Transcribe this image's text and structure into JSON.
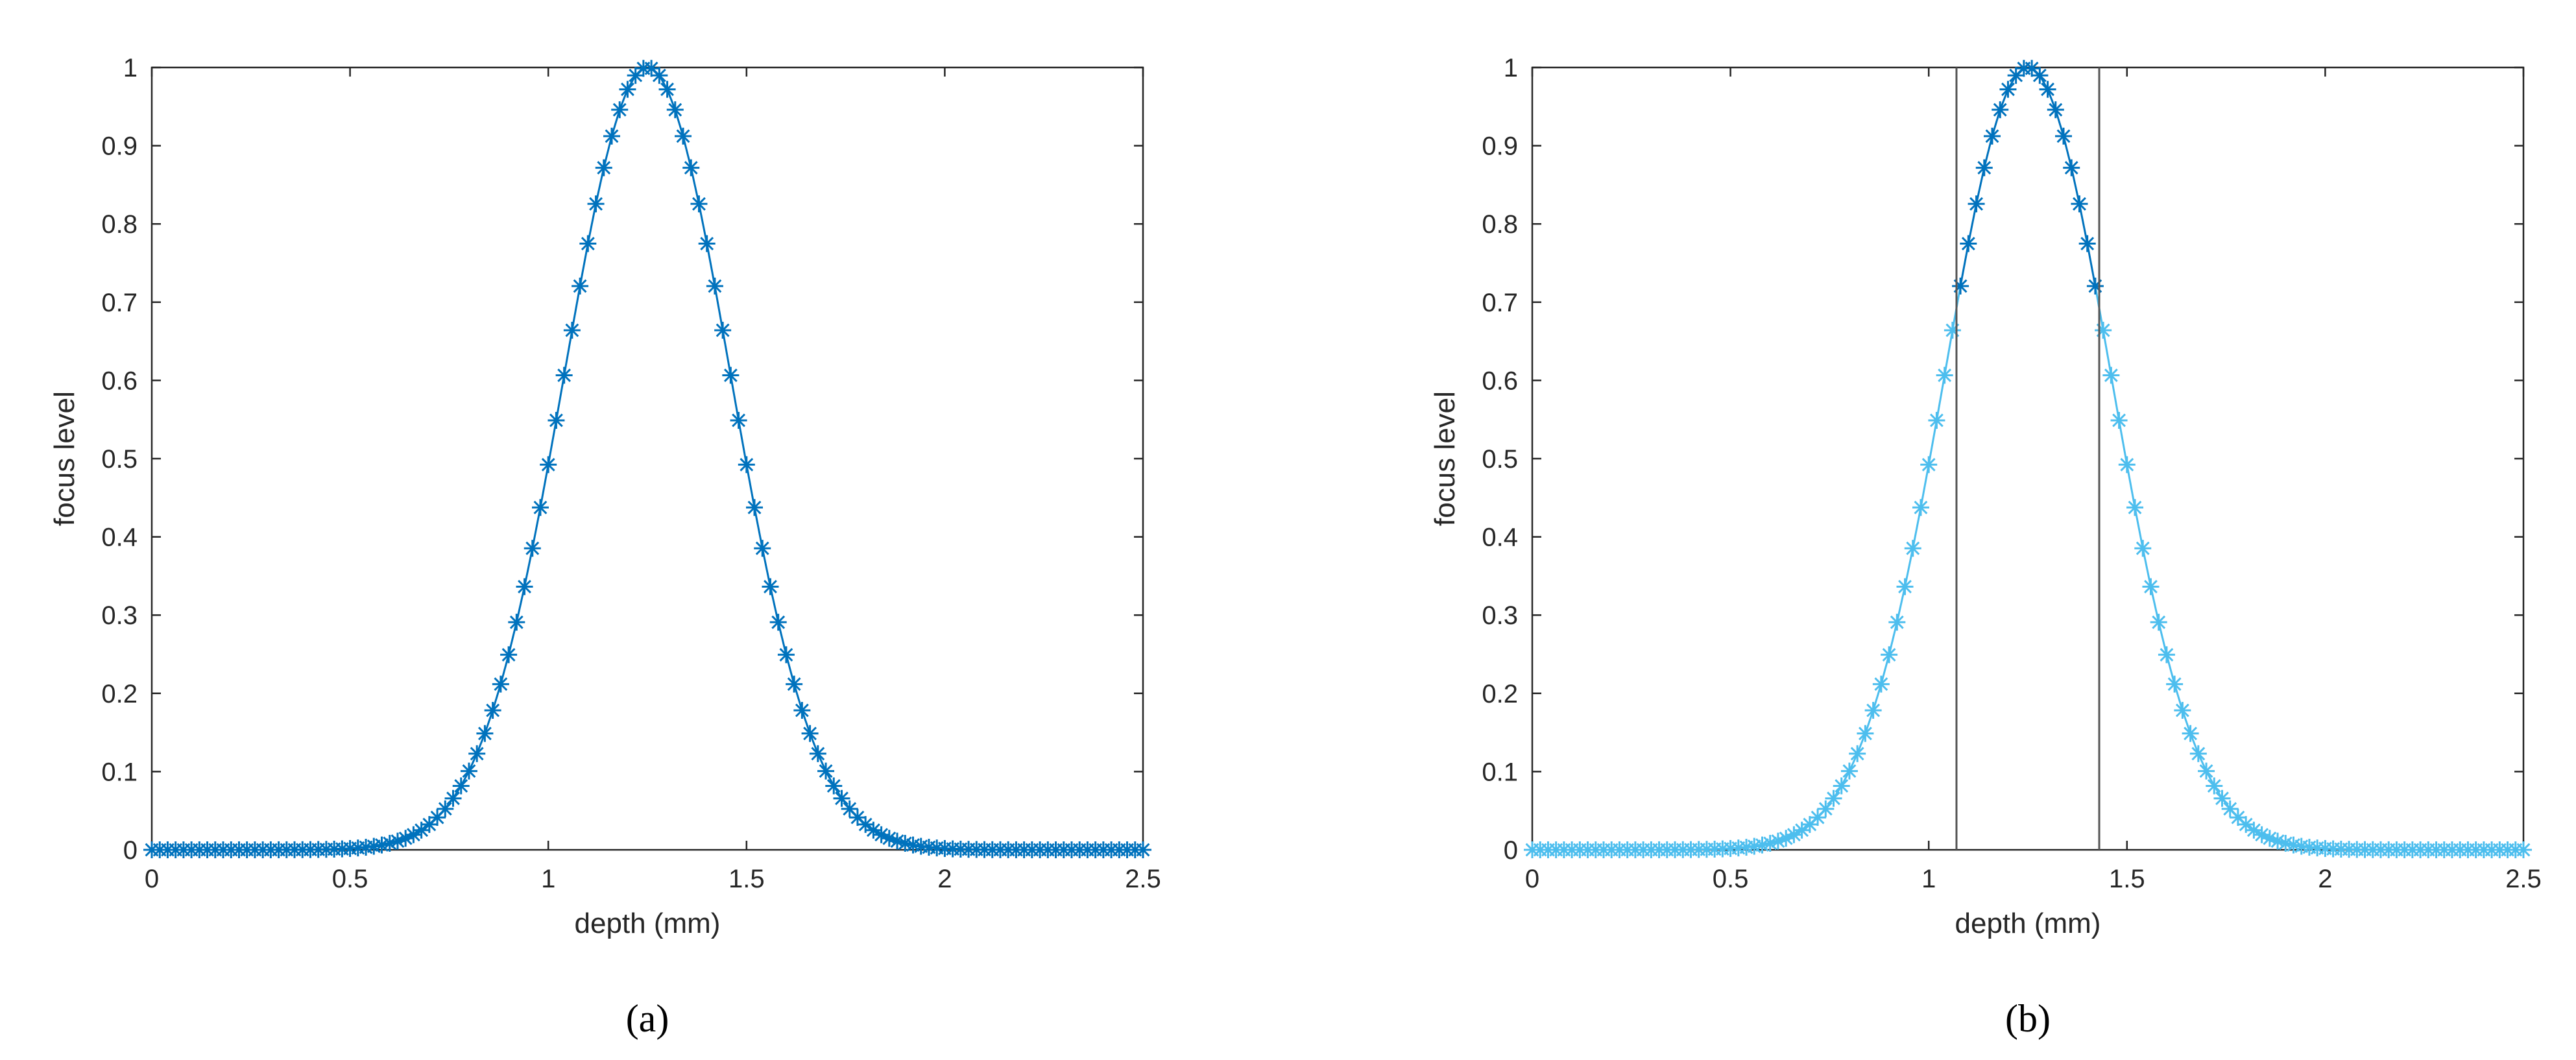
{
  "chart_data": [
    {
      "type": "line",
      "panel_label": "(a)",
      "xlabel": "depth (mm)",
      "ylabel": "focus level",
      "xlim": [
        0,
        2.5
      ],
      "ylim": [
        0,
        1
      ],
      "xticks": [
        0,
        0.5,
        1,
        1.5,
        2,
        2.5
      ],
      "xtick_labels": [
        "0",
        "0.5",
        "1",
        "1.5",
        "2",
        "2.5"
      ],
      "yticks": [
        0,
        0.1,
        0.2,
        0.3,
        0.4,
        0.5,
        0.6,
        0.7,
        0.8,
        0.9,
        1
      ],
      "ytick_labels": [
        "0",
        "0.1",
        "0.2",
        "0.3",
        "0.4",
        "0.5",
        "0.6",
        "0.7",
        "0.8",
        "0.9",
        "1"
      ],
      "grid": false,
      "marker": "asterisk",
      "series": [
        {
          "function": "gaussian",
          "mean": 1.25,
          "sigma": 0.21,
          "amplitude": 1,
          "sample_start": 0,
          "sample_step": 0.02,
          "sample_end": 2.5,
          "color": "#0072BD"
        }
      ]
    },
    {
      "type": "line",
      "panel_label": "(b)",
      "xlabel": "depth (mm)",
      "ylabel": "focus level",
      "xlim": [
        0,
        2.5
      ],
      "ylim": [
        0,
        1
      ],
      "xticks": [
        0,
        0.5,
        1,
        1.5,
        2,
        2.5
      ],
      "xtick_labels": [
        "0",
        "0.5",
        "1",
        "1.5",
        "2",
        "2.5"
      ],
      "yticks": [
        0,
        0.1,
        0.2,
        0.3,
        0.4,
        0.5,
        0.6,
        0.7,
        0.8,
        0.9,
        1
      ],
      "ytick_labels": [
        "0",
        "0.1",
        "0.2",
        "0.3",
        "0.4",
        "0.5",
        "0.6",
        "0.7",
        "0.8",
        "0.9",
        "1"
      ],
      "grid": false,
      "marker": "asterisk",
      "series": [
        {
          "function": "gaussian",
          "mean": 1.25,
          "sigma": 0.21,
          "amplitude": 1,
          "sample_start": 0,
          "sample_step": 0.02,
          "sample_end": 2.5,
          "color": "#4DBEEE",
          "highlight_color": "#0072BD",
          "highlight_range": [
            1.07,
            1.43
          ]
        }
      ],
      "vertical_lines": [
        1.07,
        1.43
      ],
      "vertical_line_color": "#555555"
    }
  ]
}
